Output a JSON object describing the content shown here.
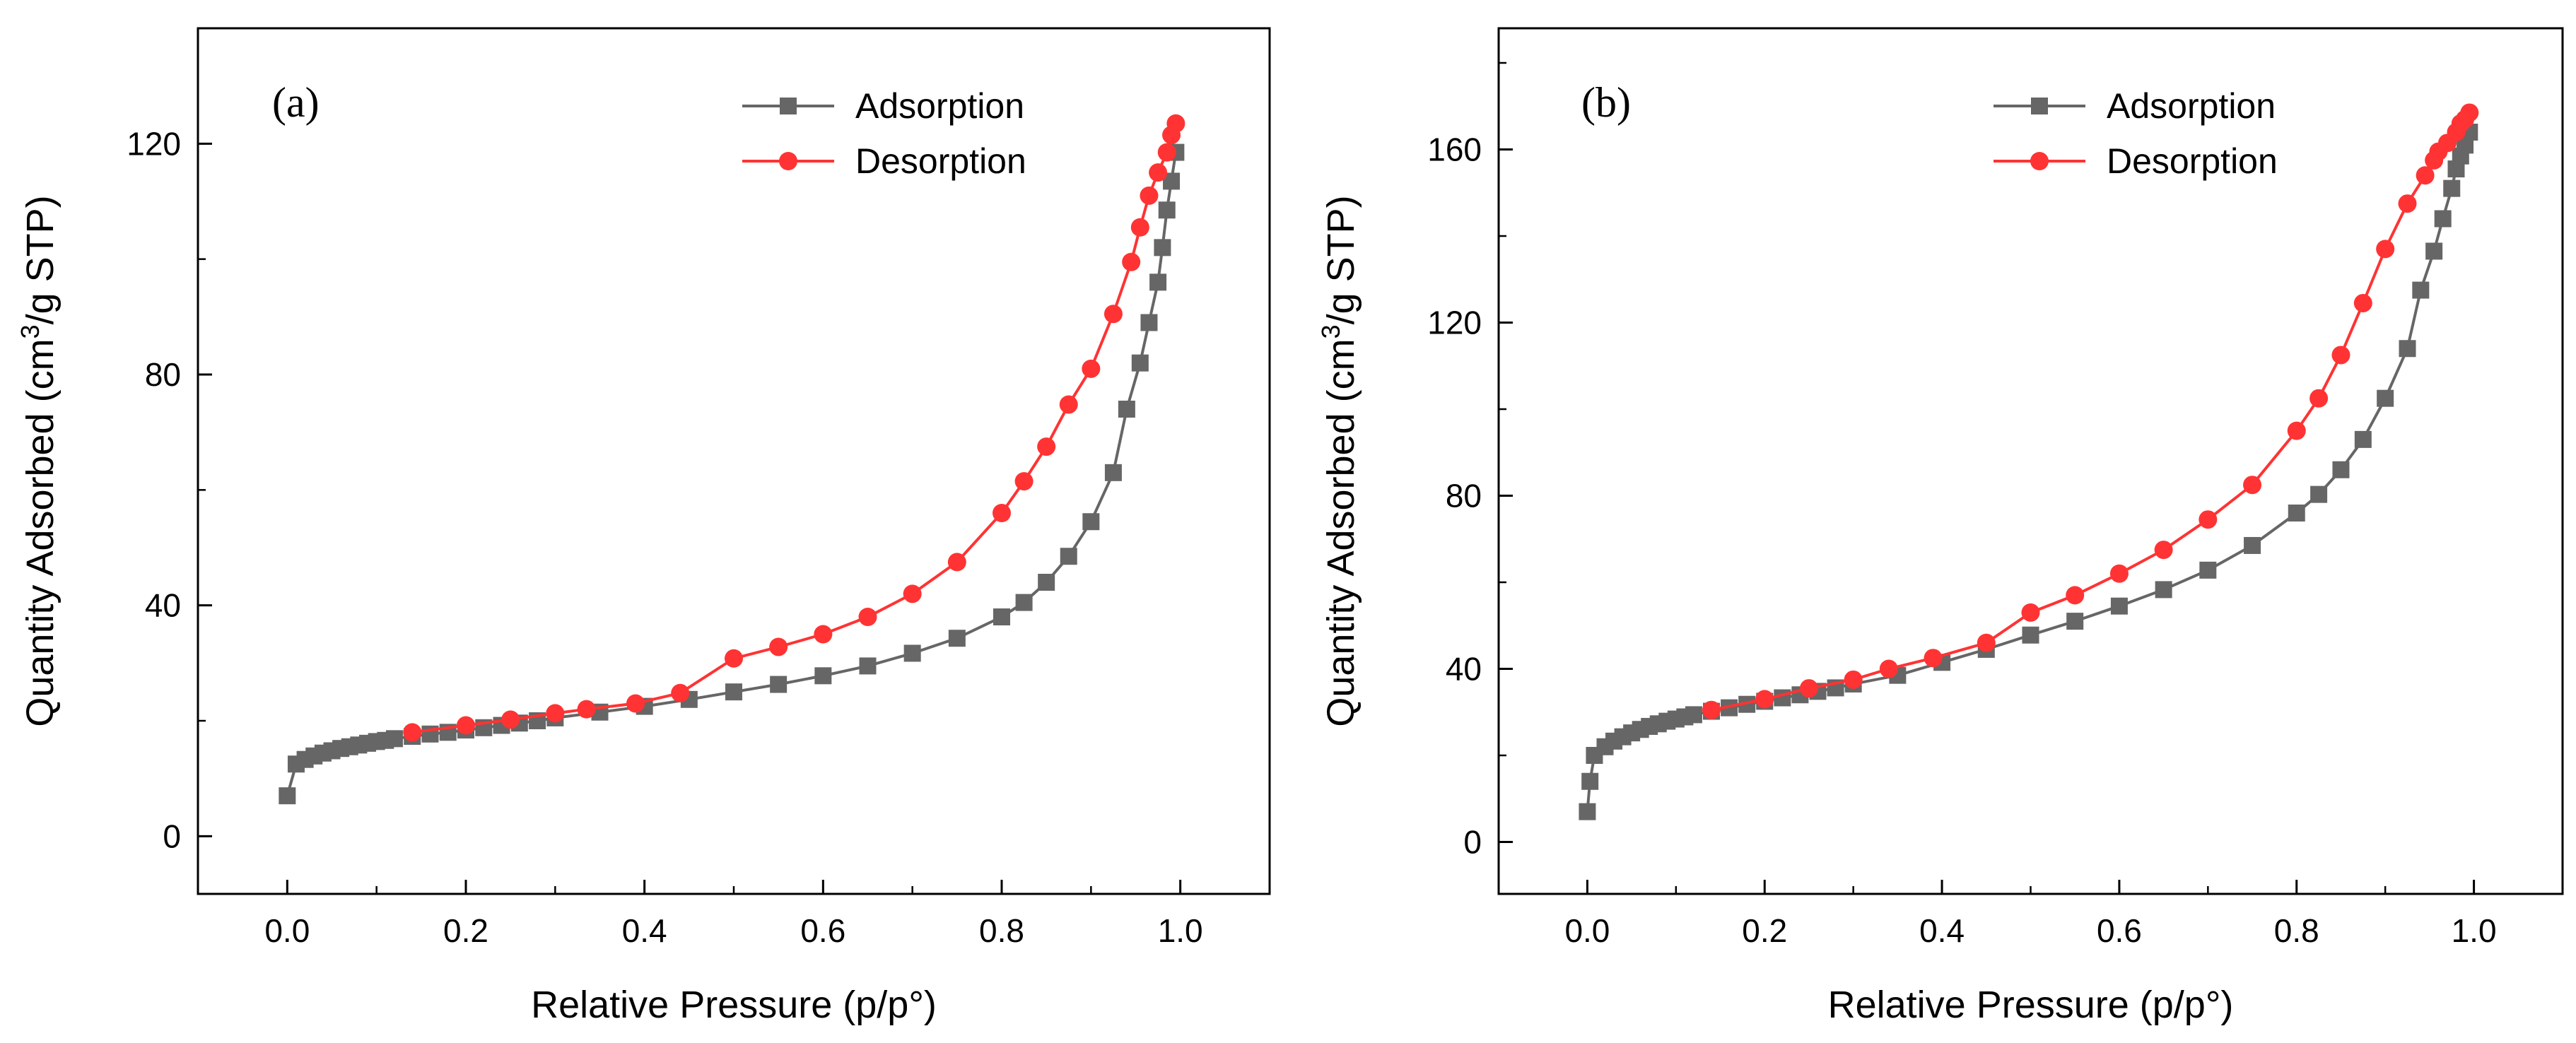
{
  "chart_data": [
    {
      "type": "line",
      "panel_label": "(a)",
      "xlabel": "Relative Pressure (p/p°)",
      "ylabel_parts": [
        "Quantity Adsorbed (cm",
        "3",
        "/g STP)"
      ],
      "xlim": [
        -0.1,
        1.1
      ],
      "ylim": [
        -10,
        140
      ],
      "xticks": [
        "0.0",
        "0.2",
        "0.4",
        "0.6",
        "0.8",
        "1.0"
      ],
      "yticks": [
        "0",
        "40",
        "80",
        "120"
      ],
      "legend_position": "top-right",
      "series": [
        {
          "name": "Adsorption",
          "color": "#666666",
          "marker": "square",
          "points": [
            [
              0.0,
              7
            ],
            [
              0.01,
              12.5
            ],
            [
              0.02,
              13.3
            ],
            [
              0.03,
              13.9
            ],
            [
              0.04,
              14.4
            ],
            [
              0.05,
              14.8
            ],
            [
              0.06,
              15.2
            ],
            [
              0.07,
              15.5
            ],
            [
              0.08,
              15.8
            ],
            [
              0.09,
              16.1
            ],
            [
              0.1,
              16.4
            ],
            [
              0.11,
              16.6
            ],
            [
              0.12,
              16.9
            ],
            [
              0.14,
              17.3
            ],
            [
              0.16,
              17.7
            ],
            [
              0.18,
              18.0
            ],
            [
              0.2,
              18.4
            ],
            [
              0.22,
              18.8
            ],
            [
              0.24,
              19.2
            ],
            [
              0.26,
              19.6
            ],
            [
              0.28,
              20.0
            ],
            [
              0.3,
              20.5
            ],
            [
              0.35,
              21.5
            ],
            [
              0.4,
              22.5
            ],
            [
              0.45,
              23.7
            ],
            [
              0.5,
              25.0
            ],
            [
              0.55,
              26.3
            ],
            [
              0.6,
              27.8
            ],
            [
              0.65,
              29.5
            ],
            [
              0.7,
              31.7
            ],
            [
              0.75,
              34.3
            ],
            [
              0.8,
              38.0
            ],
            [
              0.825,
              40.5
            ],
            [
              0.85,
              44.0
            ],
            [
              0.875,
              48.5
            ],
            [
              0.9,
              54.5
            ],
            [
              0.925,
              63.0
            ],
            [
              0.94,
              74.0
            ],
            [
              0.955,
              82.0
            ],
            [
              0.965,
              89.0
            ],
            [
              0.975,
              96.0
            ],
            [
              0.98,
              102.0
            ],
            [
              0.985,
              108.5
            ],
            [
              0.99,
              113.5
            ],
            [
              0.995,
              118.5
            ]
          ]
        },
        {
          "name": "Desorption",
          "color": "#ff3333",
          "marker": "circle",
          "points": [
            [
              0.995,
              123.5
            ],
            [
              0.99,
              121.5
            ],
            [
              0.985,
              118.5
            ],
            [
              0.975,
              115
            ],
            [
              0.965,
              111
            ],
            [
              0.955,
              105.5
            ],
            [
              0.945,
              99.5
            ],
            [
              0.925,
              90.5
            ],
            [
              0.9,
              81.0
            ],
            [
              0.875,
              74.8
            ],
            [
              0.85,
              67.5
            ],
            [
              0.825,
              61.5
            ],
            [
              0.8,
              56.0
            ],
            [
              0.75,
              47.5
            ],
            [
              0.7,
              42.0
            ],
            [
              0.65,
              38.0
            ],
            [
              0.6,
              35.0
            ],
            [
              0.55,
              32.8
            ],
            [
              0.5,
              30.8
            ],
            [
              0.44,
              24.8
            ],
            [
              0.39,
              23.0
            ],
            [
              0.335,
              22.0
            ],
            [
              0.3,
              21.3
            ],
            [
              0.25,
              20.2
            ],
            [
              0.2,
              19.2
            ],
            [
              0.14,
              18.0
            ]
          ]
        }
      ]
    },
    {
      "type": "line",
      "panel_label": "(b)",
      "xlabel": "Relative Pressure (p/p°)",
      "ylabel_parts": [
        "Quantity Adsorbed (cm",
        "3",
        "/g STP)"
      ],
      "xlim": [
        -0.1,
        1.1
      ],
      "ylim": [
        -12,
        188
      ],
      "xticks": [
        "0.0",
        "0.2",
        "0.4",
        "0.6",
        "0.8",
        "1.0"
      ],
      "yticks": [
        "0",
        "40",
        "80",
        "120",
        "160"
      ],
      "legend_position": "top-right",
      "series": [
        {
          "name": "Adsorption",
          "color": "#666666",
          "marker": "square",
          "points": [
            [
              0.0,
              7
            ],
            [
              0.003,
              14
            ],
            [
              0.008,
              20
            ],
            [
              0.02,
              22
            ],
            [
              0.03,
              23.3
            ],
            [
              0.04,
              24.3
            ],
            [
              0.05,
              25.2
            ],
            [
              0.06,
              26.0
            ],
            [
              0.07,
              26.7
            ],
            [
              0.08,
              27.3
            ],
            [
              0.09,
              27.9
            ],
            [
              0.1,
              28.4
            ],
            [
              0.11,
              28.9
            ],
            [
              0.12,
              29.4
            ],
            [
              0.14,
              30.2
            ],
            [
              0.16,
              31.0
            ],
            [
              0.18,
              31.8
            ],
            [
              0.2,
              32.5
            ],
            [
              0.22,
              33.3
            ],
            [
              0.24,
              34.0
            ],
            [
              0.26,
              34.8
            ],
            [
              0.28,
              35.6
            ],
            [
              0.3,
              36.5
            ],
            [
              0.35,
              38.5
            ],
            [
              0.4,
              41.5
            ],
            [
              0.45,
              44.5
            ],
            [
              0.5,
              47.8
            ],
            [
              0.55,
              51.0
            ],
            [
              0.6,
              54.5
            ],
            [
              0.65,
              58.3
            ],
            [
              0.7,
              62.8
            ],
            [
              0.75,
              68.5
            ],
            [
              0.8,
              76.0
            ],
            [
              0.825,
              80.3
            ],
            [
              0.85,
              86.0
            ],
            [
              0.875,
              93.0
            ],
            [
              0.9,
              102.5
            ],
            [
              0.925,
              114.0
            ],
            [
              0.94,
              127.5
            ],
            [
              0.955,
              136.5
            ],
            [
              0.965,
              144.0
            ],
            [
              0.975,
              151.0
            ],
            [
              0.98,
              155.5
            ],
            [
              0.985,
              158.5
            ],
            [
              0.99,
              161.0
            ],
            [
              0.995,
              164.0
            ]
          ]
        },
        {
          "name": "Desorption",
          "color": "#ff3333",
          "marker": "circle",
          "points": [
            [
              0.995,
              168.5
            ],
            [
              0.99,
              167.0
            ],
            [
              0.985,
              166.0
            ],
            [
              0.98,
              164.0
            ],
            [
              0.97,
              161.5
            ],
            [
              0.96,
              159.5
            ],
            [
              0.955,
              157.5
            ],
            [
              0.945,
              154.0
            ],
            [
              0.925,
              147.5
            ],
            [
              0.9,
              137.0
            ],
            [
              0.875,
              124.5
            ],
            [
              0.85,
              112.5
            ],
            [
              0.825,
              102.5
            ],
            [
              0.8,
              95.0
            ],
            [
              0.75,
              82.5
            ],
            [
              0.7,
              74.5
            ],
            [
              0.65,
              67.5
            ],
            [
              0.6,
              62.0
            ],
            [
              0.55,
              57.0
            ],
            [
              0.5,
              53.0
            ],
            [
              0.45,
              46.0
            ],
            [
              0.39,
              42.5
            ],
            [
              0.34,
              40.0
            ],
            [
              0.3,
              37.5
            ],
            [
              0.25,
              35.5
            ],
            [
              0.2,
              33.0
            ],
            [
              0.14,
              30.5
            ]
          ]
        }
      ]
    }
  ]
}
